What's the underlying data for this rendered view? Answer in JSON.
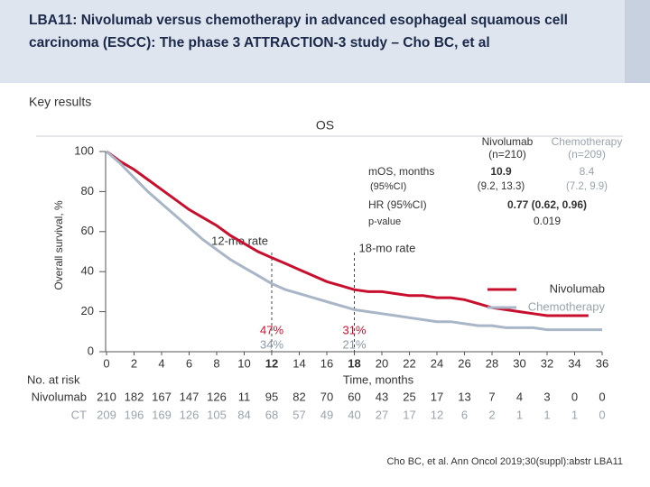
{
  "header": {
    "title": "LBA11: Nivolumab versus chemotherapy in advanced esophageal squamous cell carcinoma (ESCC): The phase 3 ATTRACTION-3 study – Cho BC, et al"
  },
  "section_label": "Key results",
  "chart_data": {
    "type": "line",
    "step": true,
    "title": "OS",
    "y_label": "Overall survival, %",
    "x_label": "Time, months",
    "x": [
      0,
      1,
      2,
      3,
      4,
      5,
      6,
      7,
      8,
      9,
      10,
      11,
      12,
      13,
      14,
      15,
      16,
      17,
      18,
      19,
      20,
      21,
      22,
      23,
      24,
      25,
      26,
      27,
      28,
      29,
      30,
      31,
      32,
      33,
      34,
      35,
      36
    ],
    "series": [
      {
        "name": "Nivolumab",
        "color": "#c8102e",
        "values": [
          100,
          95,
          91,
          86,
          81,
          76,
          71,
          67,
          63,
          58,
          54,
          50,
          47,
          44,
          41,
          38,
          35,
          33,
          31,
          30,
          30,
          29,
          28,
          28,
          27,
          27,
          26,
          24,
          22,
          21,
          20,
          19,
          18,
          18,
          18,
          18,
          null
        ]
      },
      {
        "name": "Chemotherapy",
        "color": "#a9b6c8",
        "values": [
          100,
          94,
          87,
          80,
          74,
          68,
          62,
          56,
          51,
          46,
          42,
          38,
          34,
          31,
          29,
          27,
          25,
          23,
          21,
          20,
          19,
          18,
          17,
          16,
          15,
          15,
          14,
          13,
          13,
          12,
          12,
          12,
          11,
          11,
          11,
          11,
          11
        ]
      }
    ],
    "xlim": [
      0,
      36
    ],
    "xticks": [
      0,
      2,
      4,
      6,
      8,
      10,
      12,
      14,
      16,
      18,
      20,
      22,
      24,
      26,
      28,
      30,
      32,
      34,
      36
    ],
    "ylim": [
      0,
      100
    ],
    "yticks": [
      0,
      20,
      40,
      60,
      80,
      100
    ],
    "legend": "right",
    "annotations": [
      {
        "label": "12-mo rate",
        "x": 12,
        "values": [
          47,
          34
        ],
        "value_labels": [
          "47%",
          "34%"
        ]
      },
      {
        "label": "18-mo rate",
        "x": 18,
        "values": [
          31,
          21
        ],
        "value_labels": [
          "31%",
          "21%"
        ]
      }
    ],
    "at_risk": {
      "label": "No. at risk",
      "rows": [
        {
          "name": "Nivolumab",
          "values": [
            210,
            182,
            167,
            147,
            126,
            11,
            95,
            82,
            70,
            60,
            43,
            25,
            17,
            13,
            7,
            4,
            3,
            0,
            0
          ]
        },
        {
          "name": "CT",
          "values": [
            209,
            196,
            169,
            126,
            105,
            84,
            68,
            57,
            49,
            40,
            27,
            17,
            12,
            6,
            2,
            1,
            1,
            1,
            0
          ]
        }
      ]
    }
  },
  "results_table": {
    "columns": [
      {
        "name": "Nivolumab",
        "n": "(n=210)"
      },
      {
        "name": "Chemotherapy",
        "n": "(n=209)"
      }
    ],
    "rows": [
      {
        "label": "mOS, months",
        "sublabel": "(95%CI)",
        "cells": [
          {
            "value": "10.9",
            "ci": "(9.2, 13.3)"
          },
          {
            "value": "8.4",
            "ci": "(7.2, 9.9)"
          }
        ]
      },
      {
        "label": "HR (95%CI)",
        "value": "0.77 (0.62, 0.96)"
      },
      {
        "label": "p-value",
        "value": "0.019"
      }
    ]
  },
  "citation": "Cho BC, et al. Ann Oncol 2019;30(suppl):abstr LBA11"
}
